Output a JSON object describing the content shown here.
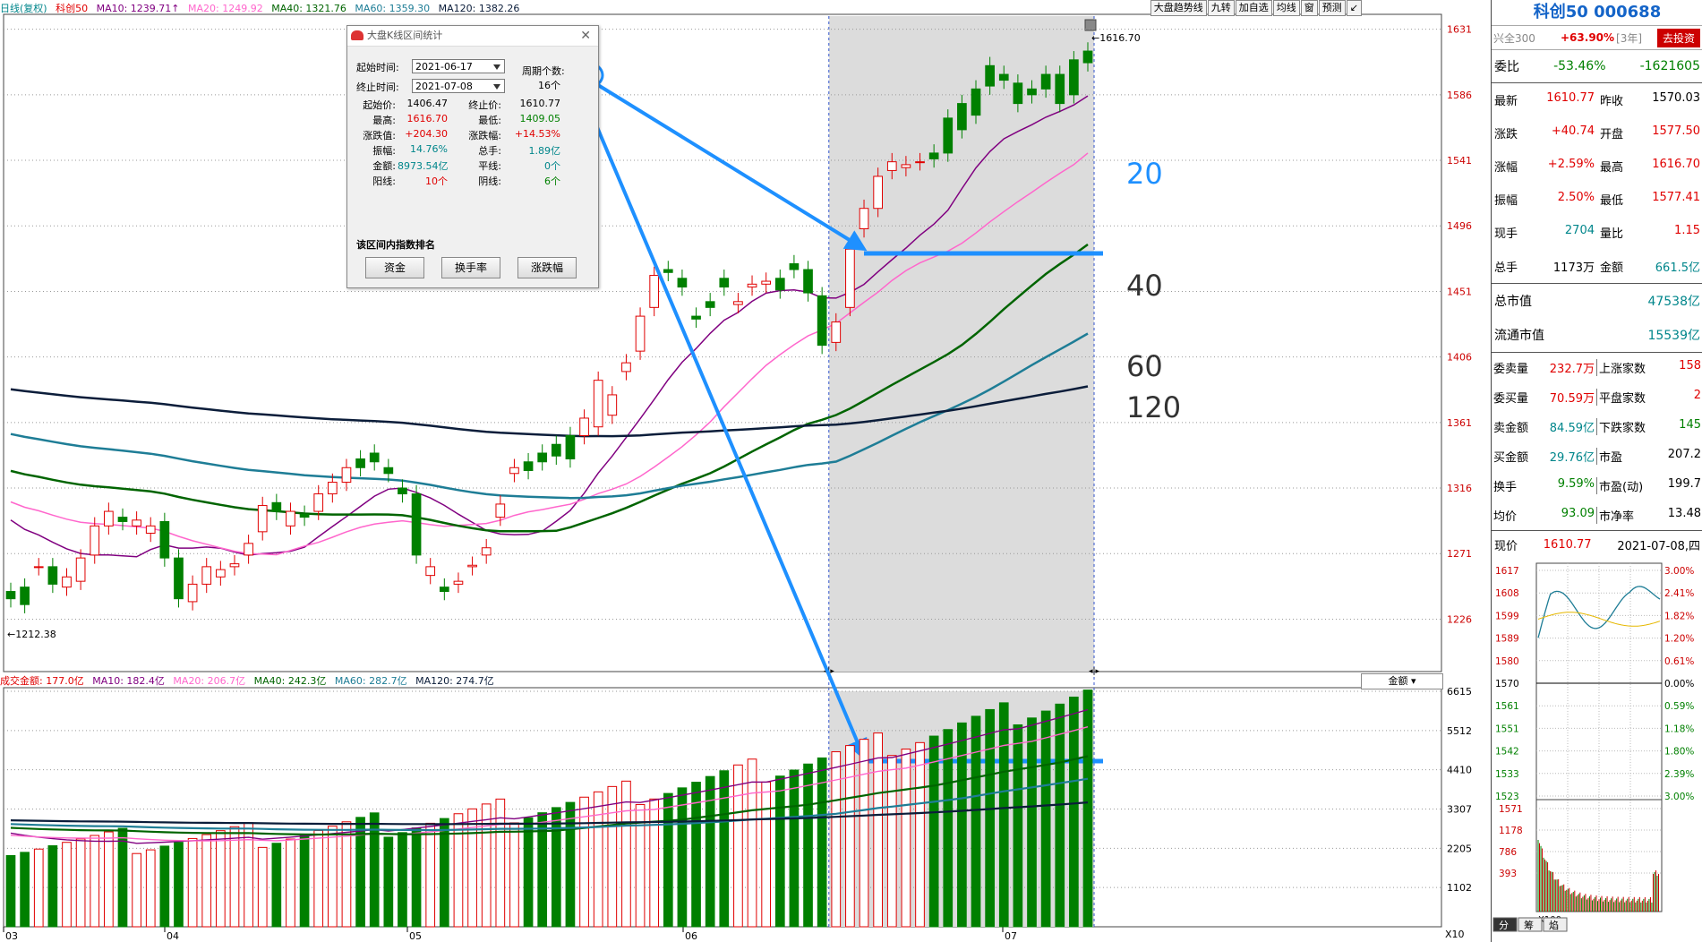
{
  "top_legend": {
    "name": "日线(复权)",
    "index": "科创50",
    "ma10": "MA10: 1239.71↑",
    "ma20": "MA20: 1249.92",
    "ma40": "MA40: 1321.76",
    "ma60": "MA60: 1359.30",
    "ma120": "MA120: 1382.26"
  },
  "vol_legend": {
    "amount": "成交金额: 177.0亿",
    "ma10": "MA10: 182.4亿",
    "ma20": "MA20: 206.7亿",
    "ma40": "MA40: 242.3亿",
    "ma60": "MA60: 282.7亿",
    "ma120": "MA120: 274.7亿",
    "selector": "金额"
  },
  "toolbar": [
    "大盘趋势线",
    "九转",
    "加自选",
    "均线",
    "窗",
    "预测",
    "↙"
  ],
  "price_axis": [
    "1631",
    "1586",
    "1541",
    "1496",
    "1451",
    "1406",
    "1361",
    "1316",
    "1271",
    "1226"
  ],
  "vol_axis": [
    "6615",
    "5512",
    "4410",
    "3307",
    "2205",
    "1102"
  ],
  "vol_axis_unit": "X10",
  "months": [
    "03",
    "04",
    "05",
    "06",
    "07"
  ],
  "annotations": {
    "high_label": "1616.70",
    "low_label": "1212.38",
    "ma_labels": [
      "20",
      "40",
      "60",
      "120"
    ]
  },
  "dialog": {
    "title": "大盘K线区间统计",
    "start_label": "起始时间:",
    "start_value": "2021-06-17",
    "end_label": "终止时间:",
    "end_value": "2021-07-08",
    "period_label": "周期个数:",
    "period_value": "16个",
    "stats": [
      {
        "k": "起始价:",
        "v": "1406.47",
        "k2": "终止价:",
        "v2": "1610.77"
      },
      {
        "k": "最高:",
        "v": "1616.70",
        "k2": "最低:",
        "v2": "1409.05"
      },
      {
        "k": "涨跌值:",
        "v": "+204.30",
        "k2": "涨跌幅:",
        "v2": "+14.53%"
      },
      {
        "k": "振幅:",
        "v": "14.76%",
        "k2": "总手:",
        "v2": "1.89亿"
      },
      {
        "k": "金额:",
        "v": "8973.54亿",
        "k2": "平线:",
        "v2": "0个"
      },
      {
        "k": "阳线:",
        "v": "10个",
        "k2": "阴线:",
        "v2": "6个"
      }
    ],
    "rank_label": "该区间内指数排名",
    "buttons": [
      "资金",
      "换手率",
      "涨跌幅"
    ]
  },
  "panel": {
    "title": "科创50 000688",
    "compare_index": "兴全300",
    "compare_pct": "+63.90%",
    "compare_period": "[3年]",
    "invest_btn": "去投资",
    "weibi_label": "委比",
    "weibi_pct": "-53.46%",
    "weibi_val": "-1621605",
    "quote": [
      {
        "k": "最新",
        "v": "1610.77",
        "k2": "昨收",
        "v2": "1570.03"
      },
      {
        "k": "涨跌",
        "v": "+40.74",
        "k2": "开盘",
        "v2": "1577.50"
      },
      {
        "k": "涨幅",
        "v": "+2.59%",
        "k2": "最高",
        "v2": "1616.70"
      },
      {
        "k": "振幅",
        "v": "2.50%",
        "k2": "最低",
        "v2": "1577.41"
      },
      {
        "k": "现手",
        "v": "2704",
        "k2": "量比",
        "v2": "1.15"
      },
      {
        "k": "总手",
        "v": "1173万",
        "k2": "金额",
        "v2": "661.5亿"
      }
    ],
    "market_cap_label": "总市值",
    "market_cap": "47538亿",
    "float_cap_label": "流通市值",
    "float_cap": "15539亿",
    "depth": [
      {
        "k": "委卖量",
        "v": "232.7万",
        "k2": "上涨家数",
        "v2": "158"
      },
      {
        "k": "委买量",
        "v": "70.59万",
        "k2": "平盘家数",
        "v2": "2"
      },
      {
        "k": "卖金额",
        "v": "84.59亿",
        "k2": "下跌家数",
        "v2": "145"
      },
      {
        "k": "买金额",
        "v": "29.76亿",
        "k2": "市盈",
        "v2": "207.2"
      },
      {
        "k": "换手",
        "v": "9.59%",
        "k2": "市盈(动)",
        "v2": "199.7"
      },
      {
        "k": "均价",
        "v": "93.09",
        "k2": "市净率",
        "v2": "13.48"
      }
    ],
    "mini_price_label": "现价",
    "mini_price": "1610.77",
    "mini_date": "2021-07-08,四",
    "mini_left_axis": [
      "1617",
      "1608",
      "1599",
      "1589",
      "1580",
      "1570",
      "1561",
      "1551",
      "1542",
      "1533",
      "1523"
    ],
    "mini_right_axis": [
      "3.00%",
      "2.41%",
      "1.82%",
      "1.20%",
      "0.61%",
      "0.00%",
      "0.59%",
      "1.18%",
      "1.80%",
      "2.39%",
      "3.00%"
    ],
    "mini_vol_axis": [
      "1571",
      "1178",
      "786",
      "393"
    ],
    "mini_vol_unit": "X100",
    "bottom_tabs": [
      "分",
      "筹",
      "焰"
    ]
  },
  "colors": {
    "up": "#e00000",
    "down": "#008000",
    "ma10": "#800080",
    "ma20": "#ff66cc",
    "ma40": "#006400",
    "ma60": "#1e7d96",
    "ma120": "#0b1d3a",
    "annotation": "#1e90ff"
  },
  "chart_data": {
    "type": "candlestick",
    "ohlc": [
      [
        1245,
        1240,
        1230,
        1215
      ],
      [
        1248,
        1236,
        1230,
        1228
      ],
      [
        1262,
        1262,
        1250,
        1248
      ],
      [
        1262,
        1250,
        1245,
        1240
      ],
      [
        1248,
        1255,
        1245,
        1238
      ],
      [
        1252,
        1268,
        1252,
        1250
      ],
      [
        1270,
        1290,
        1268,
        1262
      ],
      [
        1290,
        1300,
        1286,
        1282
      ],
      [
        1296,
        1293,
        1288,
        1286
      ],
      [
        1290,
        1294,
        1286,
        1284
      ],
      [
        1285,
        1290,
        1284,
        1282
      ],
      [
        1293,
        1268,
        1266,
        1264
      ],
      [
        1268,
        1240,
        1238,
        1236
      ],
      [
        1238,
        1250,
        1238,
        1234
      ],
      [
        1250,
        1262,
        1246,
        1244
      ],
      [
        1255,
        1260,
        1248,
        1246
      ],
      [
        1262,
        1264,
        1256,
        1254
      ],
      [
        1270,
        1278,
        1260,
        1258
      ],
      [
        1286,
        1304,
        1286,
        1284
      ],
      [
        1306,
        1300,
        1290,
        1288
      ],
      [
        1290,
        1300,
        1286,
        1284
      ],
      [
        1298,
        1296,
        1286,
        1284
      ],
      [
        1300,
        1312,
        1298,
        1296
      ],
      [
        1312,
        1320,
        1306,
        1304
      ],
      [
        1320,
        1330,
        1316,
        1314
      ],
      [
        1336,
        1330,
        1324,
        1322
      ],
      [
        1340,
        1334,
        1326,
        1324
      ],
      [
        1330,
        1326,
        1318,
        1316
      ],
      [
        1316,
        1312,
        1300,
        1298
      ],
      [
        1312,
        1270,
        1268,
        1266
      ],
      [
        1256,
        1262,
        1255,
        1250
      ],
      [
        1248,
        1245,
        1240,
        1236
      ],
      [
        1250,
        1252,
        1246,
        1244
      ],
      [
        1262,
        1263,
        1252,
        1250
      ],
      [
        1270,
        1275,
        1262,
        1260
      ],
      [
        1296,
        1305,
        1294,
        1292
      ],
      [
        1326,
        1330,
        1320,
        1318
      ],
      [
        1334,
        1328,
        1320,
        1318
      ],
      [
        1340,
        1334,
        1326,
        1324
      ],
      [
        1346,
        1338,
        1330,
        1328
      ],
      [
        1352,
        1336,
        1316,
        1314
      ],
      [
        1352,
        1364,
        1326,
        1324
      ],
      [
        1358,
        1390,
        1356,
        1354
      ],
      [
        1366,
        1380,
        1364,
        1362
      ],
      [
        1396,
        1402,
        1380,
        1378
      ],
      [
        1410,
        1434,
        1410,
        1408
      ],
      [
        1440,
        1462,
        1440,
        1438
      ],
      [
        1466,
        1464,
        1428,
        1426
      ],
      [
        1460,
        1454,
        1428,
        1426
      ],
      [
        1434,
        1432,
        1418,
        1416
      ],
      [
        1444,
        1440,
        1420,
        1418
      ],
      [
        1460,
        1454,
        1430,
        1428
      ],
      [
        1442,
        1444,
        1434,
        1432
      ],
      [
        1454,
        1456,
        1440,
        1438
      ],
      [
        1456,
        1458,
        1436,
        1434
      ],
      [
        1460,
        1452,
        1442,
        1440
      ],
      [
        1470,
        1466,
        1448,
        1446
      ],
      [
        1466,
        1450,
        1440,
        1438
      ],
      [
        1448,
        1414,
        1404,
        1402
      ],
      [
        1416,
        1430,
        1406,
        1405
      ],
      [
        1440,
        1480,
        1440,
        1438
      ],
      [
        1494,
        1508,
        1476,
        1474
      ],
      [
        1508,
        1530,
        1506,
        1504
      ],
      [
        1534,
        1540,
        1528,
        1526
      ],
      [
        1536,
        1538,
        1520,
        1518
      ],
      [
        1540,
        1540,
        1512,
        1510
      ],
      [
        1546,
        1542,
        1540,
        1538
      ],
      [
        1570,
        1546,
        1508,
        1506
      ],
      [
        1580,
        1562,
        1544,
        1542
      ],
      [
        1590,
        1572,
        1540,
        1538
      ],
      [
        1606,
        1592,
        1564,
        1562
      ],
      [
        1600,
        1596,
        1584,
        1582
      ],
      [
        1594,
        1580,
        1560,
        1558
      ],
      [
        1590,
        1586,
        1540,
        1538
      ],
      [
        1600,
        1590,
        1560,
        1558
      ],
      [
        1600,
        1580,
        1540,
        1538
      ],
      [
        1610,
        1586,
        1540,
        1538
      ],
      [
        1616,
        1608,
        1576,
        1574
      ]
    ],
    "range_start_index": 59,
    "range_end_index": 77
  }
}
